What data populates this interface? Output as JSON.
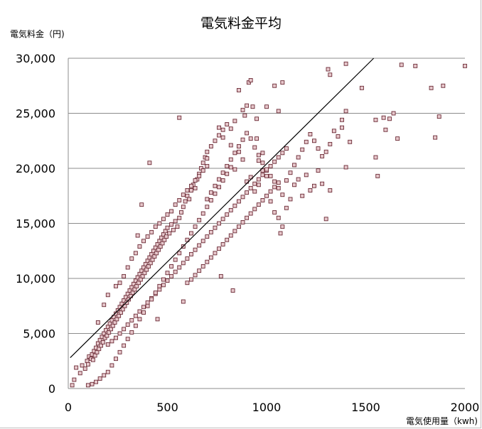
{
  "chart_data": {
    "type": "scatter",
    "title": "電気料金平均",
    "ylabel": "電気料金（円)",
    "xlabel": "電気使用量（kwh)",
    "xlim": [
      0,
      2000
    ],
    "ylim": [
      0,
      30000
    ],
    "x_ticks": [
      "0",
      "500",
      "1000",
      "1500",
      "2000"
    ],
    "y_ticks": [
      "0",
      "5,000",
      "10,000",
      "15,000",
      "20,000",
      "25,000",
      "30,000"
    ],
    "grid": "horizontal",
    "trendline": {
      "x": [
        10,
        1540
      ],
      "y": [
        2800,
        30000
      ]
    },
    "marker_color": "#e7c8cc",
    "marker_edge": "#6b2a35",
    "points_estimated": [
      [
        20,
        300
      ],
      [
        30,
        800
      ],
      [
        40,
        1900
      ],
      [
        60,
        1400
      ],
      [
        70,
        2100
      ],
      [
        85,
        1800
      ],
      [
        95,
        2500
      ],
      [
        100,
        2200
      ],
      [
        105,
        2900
      ],
      [
        115,
        2700
      ],
      [
        120,
        3100
      ],
      [
        125,
        2600
      ],
      [
        130,
        3400
      ],
      [
        135,
        3000
      ],
      [
        140,
        3700
      ],
      [
        145,
        3300
      ],
      [
        150,
        4100
      ],
      [
        155,
        3600
      ],
      [
        160,
        4400
      ],
      [
        165,
        3900
      ],
      [
        170,
        4700
      ],
      [
        175,
        4200
      ],
      [
        180,
        5000
      ],
      [
        185,
        4600
      ],
      [
        190,
        5300
      ],
      [
        195,
        4800
      ],
      [
        200,
        5600
      ],
      [
        205,
        5100
      ],
      [
        210,
        5900
      ],
      [
        215,
        5400
      ],
      [
        220,
        6200
      ],
      [
        225,
        5700
      ],
      [
        230,
        6500
      ],
      [
        235,
        6000
      ],
      [
        240,
        6800
      ],
      [
        245,
        6300
      ],
      [
        250,
        7100
      ],
      [
        255,
        6600
      ],
      [
        260,
        7400
      ],
      [
        265,
        6900
      ],
      [
        270,
        7700
      ],
      [
        275,
        7200
      ],
      [
        280,
        8000
      ],
      [
        285,
        7500
      ],
      [
        290,
        8300
      ],
      [
        295,
        7800
      ],
      [
        300,
        8600
      ],
      [
        305,
        8100
      ],
      [
        310,
        8900
      ],
      [
        315,
        8400
      ],
      [
        320,
        9200
      ],
      [
        325,
        8700
      ],
      [
        330,
        9500
      ],
      [
        335,
        9000
      ],
      [
        340,
        9800
      ],
      [
        345,
        9300
      ],
      [
        350,
        10100
      ],
      [
        355,
        9600
      ],
      [
        360,
        10400
      ],
      [
        365,
        9900
      ],
      [
        370,
        10700
      ],
      [
        375,
        10200
      ],
      [
        380,
        11000
      ],
      [
        385,
        10500
      ],
      [
        390,
        11300
      ],
      [
        395,
        10800
      ],
      [
        400,
        11600
      ],
      [
        405,
        11100
      ],
      [
        410,
        11900
      ],
      [
        415,
        11400
      ],
      [
        420,
        12200
      ],
      [
        425,
        11700
      ],
      [
        430,
        12500
      ],
      [
        435,
        12000
      ],
      [
        440,
        12800
      ],
      [
        445,
        12300
      ],
      [
        450,
        13100
      ],
      [
        455,
        12600
      ],
      [
        460,
        13400
      ],
      [
        465,
        12900
      ],
      [
        470,
        13700
      ],
      [
        475,
        13200
      ],
      [
        480,
        14000
      ],
      [
        485,
        13500
      ],
      [
        490,
        14300
      ],
      [
        495,
        13800
      ],
      [
        500,
        14600
      ],
      [
        510,
        14100
      ],
      [
        520,
        14900
      ],
      [
        530,
        14400
      ],
      [
        540,
        15200
      ],
      [
        550,
        14700
      ],
      [
        560,
        15500
      ],
      [
        570,
        16000
      ],
      [
        580,
        16500
      ],
      [
        590,
        17000
      ],
      [
        600,
        17500
      ],
      [
        610,
        17200
      ],
      [
        620,
        18000
      ],
      [
        630,
        18500
      ],
      [
        640,
        18200
      ],
      [
        650,
        19000
      ],
      [
        660,
        19500
      ],
      [
        670,
        20000
      ],
      [
        680,
        20500
      ],
      [
        690,
        21000
      ],
      [
        700,
        21500
      ],
      [
        720,
        22000
      ],
      [
        740,
        22500
      ],
      [
        760,
        23000
      ],
      [
        780,
        23500
      ],
      [
        800,
        24000
      ],
      [
        820,
        23600
      ],
      [
        150,
        6000
      ],
      [
        180,
        7600
      ],
      [
        200,
        8500
      ],
      [
        240,
        9300
      ],
      [
        260,
        9600
      ],
      [
        280,
        10200
      ],
      [
        300,
        11000
      ],
      [
        320,
        11800
      ],
      [
        340,
        12300
      ],
      [
        360,
        12900
      ],
      [
        380,
        13400
      ],
      [
        400,
        13800
      ],
      [
        420,
        14200
      ],
      [
        440,
        14700
      ],
      [
        460,
        15000
      ],
      [
        480,
        15400
      ],
      [
        500,
        15800
      ],
      [
        520,
        16100
      ],
      [
        540,
        16700
      ],
      [
        560,
        17100
      ],
      [
        580,
        17600
      ],
      [
        600,
        18000
      ],
      [
        620,
        18400
      ],
      [
        640,
        18900
      ],
      [
        660,
        19300
      ],
      [
        680,
        19800
      ],
      [
        700,
        20200
      ],
      [
        200,
        4000
      ],
      [
        220,
        4300
      ],
      [
        240,
        4600
      ],
      [
        260,
        5000
      ],
      [
        280,
        5400
      ],
      [
        300,
        5800
      ],
      [
        320,
        6200
      ],
      [
        340,
        6600
      ],
      [
        360,
        7000
      ],
      [
        380,
        7400
      ],
      [
        400,
        7800
      ],
      [
        420,
        8200
      ],
      [
        440,
        8600
      ],
      [
        460,
        9000
      ],
      [
        480,
        9400
      ],
      [
        500,
        9800
      ],
      [
        520,
        10200
      ],
      [
        540,
        10600
      ],
      [
        560,
        11000
      ],
      [
        580,
        11400
      ],
      [
        600,
        11800
      ],
      [
        620,
        12200
      ],
      [
        640,
        12600
      ],
      [
        660,
        13000
      ],
      [
        680,
        13400
      ],
      [
        700,
        13800
      ],
      [
        720,
        14200
      ],
      [
        740,
        14600
      ],
      [
        760,
        15000
      ],
      [
        780,
        15400
      ],
      [
        800,
        15800
      ],
      [
        820,
        16200
      ],
      [
        840,
        16600
      ],
      [
        860,
        17000
      ],
      [
        880,
        17400
      ],
      [
        900,
        17800
      ],
      [
        920,
        18200
      ],
      [
        940,
        18600
      ],
      [
        960,
        19000
      ],
      [
        980,
        19400
      ],
      [
        1000,
        19800
      ],
      [
        1020,
        20200
      ],
      [
        1040,
        20600
      ],
      [
        1060,
        21000
      ],
      [
        1080,
        21400
      ],
      [
        1100,
        21800
      ],
      [
        600,
        9600
      ],
      [
        620,
        9900
      ],
      [
        640,
        10300
      ],
      [
        660,
        10700
      ],
      [
        680,
        11100
      ],
      [
        700,
        11500
      ],
      [
        720,
        11900
      ],
      [
        740,
        12300
      ],
      [
        760,
        12700
      ],
      [
        780,
        13100
      ],
      [
        800,
        13500
      ],
      [
        820,
        13900
      ],
      [
        840,
        14300
      ],
      [
        860,
        14700
      ],
      [
        880,
        15100
      ],
      [
        900,
        15500
      ],
      [
        920,
        15900
      ],
      [
        940,
        16300
      ],
      [
        960,
        16700
      ],
      [
        980,
        17100
      ],
      [
        1000,
        17500
      ],
      [
        1020,
        17900
      ],
      [
        1040,
        18300
      ],
      [
        1060,
        18700
      ],
      [
        700,
        17200
      ],
      [
        720,
        17800
      ],
      [
        740,
        18400
      ],
      [
        760,
        19000
      ],
      [
        780,
        19600
      ],
      [
        800,
        20200
      ],
      [
        820,
        20800
      ],
      [
        840,
        21400
      ],
      [
        860,
        22000
      ],
      [
        880,
        22600
      ],
      [
        900,
        23200
      ],
      [
        920,
        22700
      ],
      [
        940,
        21900
      ],
      [
        960,
        21200
      ],
      [
        980,
        20500
      ],
      [
        1000,
        19900
      ],
      [
        1020,
        19300
      ],
      [
        1040,
        18800
      ],
      [
        1060,
        18200
      ],
      [
        1080,
        17600
      ],
      [
        1100,
        18900
      ],
      [
        1120,
        19600
      ],
      [
        1140,
        20300
      ],
      [
        1160,
        21000
      ],
      [
        1180,
        21700
      ],
      [
        1200,
        22400
      ],
      [
        1220,
        23100
      ],
      [
        1240,
        22500
      ],
      [
        1260,
        21800
      ],
      [
        1280,
        21100
      ],
      [
        1300,
        21500
      ],
      [
        1320,
        22200
      ],
      [
        1340,
        23400
      ],
      [
        1360,
        22900
      ],
      [
        1380,
        23700
      ],
      [
        1400,
        25200
      ],
      [
        1420,
        22400
      ],
      [
        1300,
        15400
      ],
      [
        1320,
        18000
      ],
      [
        1220,
        18000
      ],
      [
        1240,
        18400
      ],
      [
        1260,
        19800
      ],
      [
        1280,
        18600
      ],
      [
        1200,
        19400
      ],
      [
        1180,
        17500
      ],
      [
        1160,
        19000
      ],
      [
        1140,
        18500
      ],
      [
        1120,
        17200
      ],
      [
        1100,
        16400
      ],
      [
        1080,
        14700
      ],
      [
        1070,
        14100
      ],
      [
        1060,
        15500
      ],
      [
        1040,
        16000
      ],
      [
        1020,
        17000
      ],
      [
        1000,
        19300
      ],
      [
        980,
        19800
      ],
      [
        960,
        18500
      ],
      [
        940,
        17900
      ],
      [
        920,
        19200
      ],
      [
        900,
        18800
      ],
      [
        880,
        20800
      ],
      [
        860,
        21500
      ],
      [
        840,
        19900
      ],
      [
        820,
        20100
      ],
      [
        800,
        19500
      ],
      [
        780,
        18900
      ],
      [
        760,
        18300
      ],
      [
        740,
        17700
      ],
      [
        720,
        17100
      ],
      [
        700,
        16500
      ],
      [
        680,
        15900
      ],
      [
        660,
        15300
      ],
      [
        640,
        14700
      ],
      [
        620,
        14100
      ],
      [
        600,
        13500
      ],
      [
        580,
        12900
      ],
      [
        560,
        12300
      ],
      [
        540,
        11700
      ],
      [
        520,
        11100
      ],
      [
        500,
        10500
      ],
      [
        480,
        9900
      ],
      [
        460,
        9300
      ],
      [
        440,
        8700
      ],
      [
        420,
        8100
      ],
      [
        400,
        7500
      ],
      [
        380,
        6900
      ],
      [
        360,
        6300
      ],
      [
        340,
        5700
      ],
      [
        320,
        5100
      ],
      [
        300,
        4500
      ],
      [
        280,
        3900
      ],
      [
        260,
        3300
      ],
      [
        240,
        2700
      ],
      [
        220,
        2100
      ],
      [
        200,
        1500
      ],
      [
        180,
        1200
      ],
      [
        160,
        900
      ],
      [
        140,
        600
      ],
      [
        120,
        400
      ],
      [
        100,
        300
      ],
      [
        910,
        27800
      ],
      [
        920,
        28000
      ],
      [
        900,
        25700
      ],
      [
        890,
        24800
      ],
      [
        880,
        25300
      ],
      [
        860,
        27100
      ],
      [
        930,
        25600
      ],
      [
        950,
        24500
      ],
      [
        1000,
        25600
      ],
      [
        1040,
        27500
      ],
      [
        1060,
        25200
      ],
      [
        1080,
        27800
      ],
      [
        1320,
        28500
      ],
      [
        1310,
        29000
      ],
      [
        1400,
        29500
      ],
      [
        1380,
        24400
      ],
      [
        1480,
        27300
      ],
      [
        1400,
        20100
      ],
      [
        1560,
        19300
      ],
      [
        1550,
        21000
      ],
      [
        1620,
        24500
      ],
      [
        1640,
        25000
      ],
      [
        1660,
        22700
      ],
      [
        1600,
        23500
      ],
      [
        1680,
        29400
      ],
      [
        1750,
        29300
      ],
      [
        1830,
        27300
      ],
      [
        1850,
        22800
      ],
      [
        1870,
        24700
      ],
      [
        1890,
        27500
      ],
      [
        2000,
        29300
      ],
      [
        1550,
        24400
      ],
      [
        1590,
        24600
      ],
      [
        560,
        24600
      ],
      [
        410,
        20500
      ],
      [
        370,
        16700
      ],
      [
        350,
        13900
      ],
      [
        450,
        6300
      ],
      [
        580,
        7900
      ],
      [
        830,
        8900
      ],
      [
        770,
        10200
      ],
      [
        700,
        20900
      ],
      [
        760,
        23700
      ],
      [
        780,
        22800
      ],
      [
        820,
        22100
      ],
      [
        840,
        24300
      ],
      [
        980,
        21400
      ],
      [
        950,
        22700
      ],
      [
        960,
        20700
      ]
    ]
  }
}
